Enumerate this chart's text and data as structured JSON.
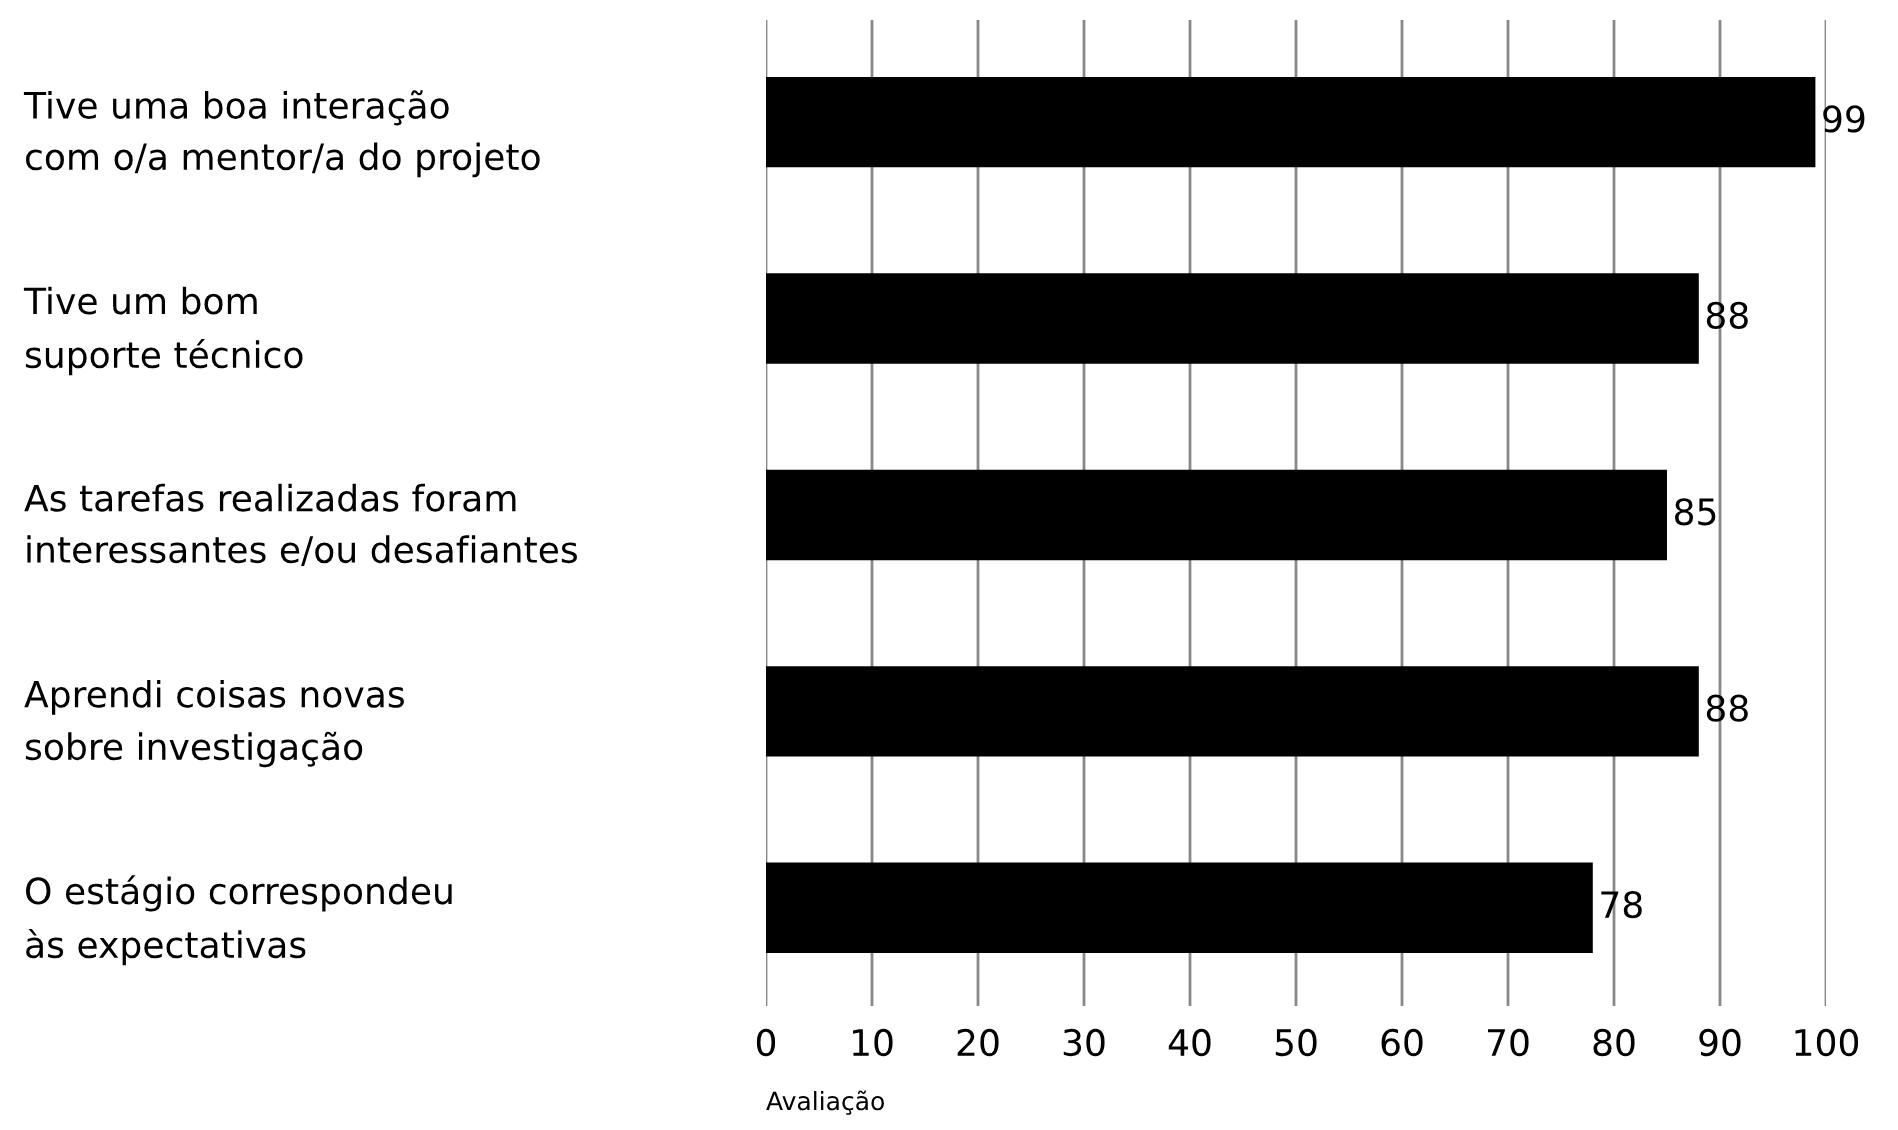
{
  "chart_data": {
    "type": "bar",
    "orientation": "horizontal",
    "xlabel": "Avaliação",
    "categories": [
      "Tive uma boa interação\ncom o/a mentor/a do projeto",
      "Tive um bom\nsuporte técnico",
      "As tarefas realizadas foram\ninteressantes e/ou desafiantes",
      "Aprendi coisas novas\nsobre investigação",
      "O estágio correspondeu\nàs expectativas"
    ],
    "values": [
      99,
      88,
      85,
      88,
      78
    ],
    "color": "#000000",
    "xlim": [
      0,
      100
    ],
    "xticks": [
      0,
      10,
      20,
      30,
      40,
      50,
      60,
      70,
      80,
      90,
      100
    ],
    "grid": "x",
    "legend": false,
    "data_labels": true
  }
}
